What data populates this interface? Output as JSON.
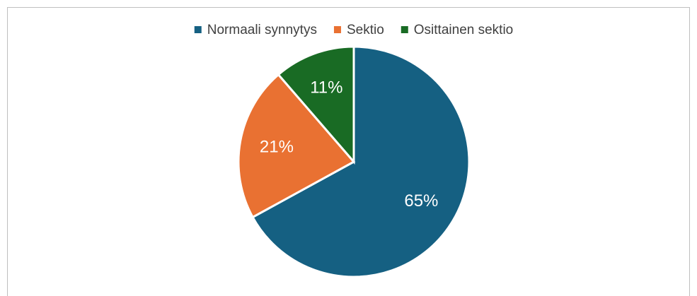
{
  "chart_data": {
    "type": "pie",
    "categories": [
      "Normaali synnytys",
      "Sektio",
      "Osittainen sektio"
    ],
    "values": [
      65,
      21,
      11
    ],
    "value_labels": [
      "65%",
      "21%",
      "11%"
    ],
    "colors": [
      "#156082",
      "#e97132",
      "#196b24"
    ],
    "legend": "top"
  }
}
